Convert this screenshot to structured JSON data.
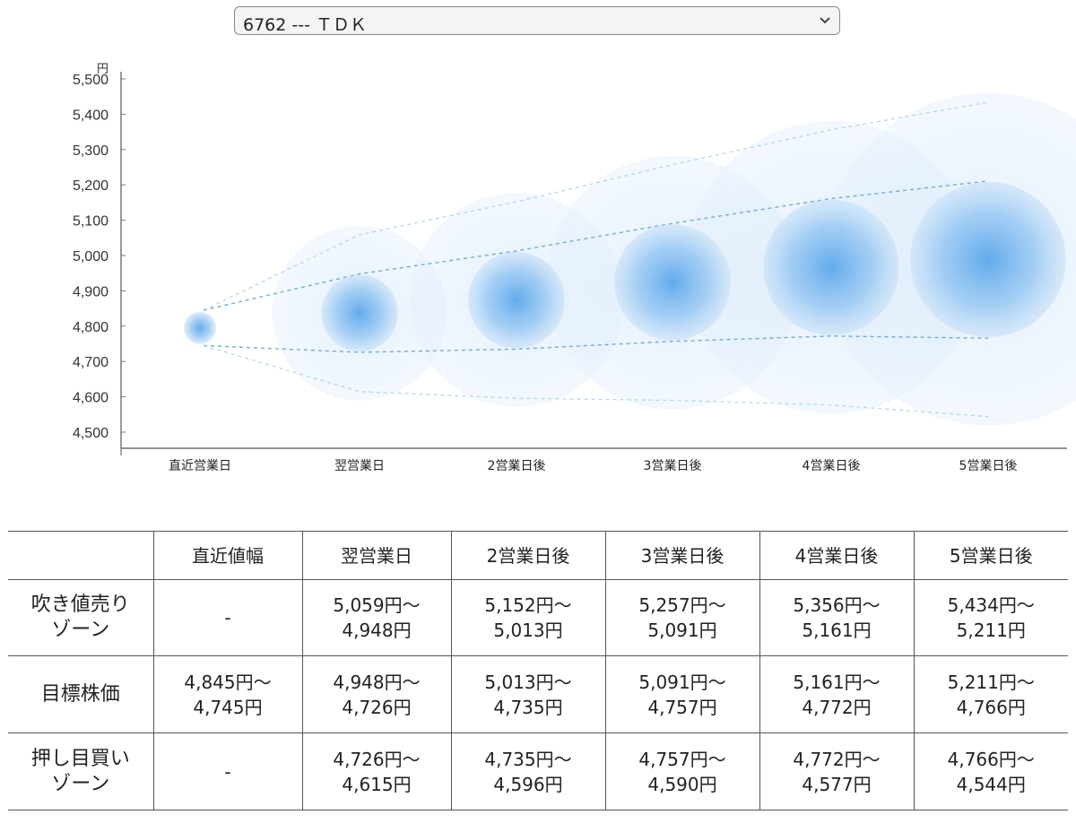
{
  "selector": {
    "value": "6762 --- ＴＤＫ"
  },
  "chart_data": {
    "type": "bubble-range",
    "y_unit_label": "円",
    "ylim": [
      4500,
      5500
    ],
    "y_ticks": [
      "4,500",
      "4,600",
      "4,700",
      "4,800",
      "4,900",
      "5,000",
      "5,100",
      "5,200",
      "5,300",
      "5,400",
      "5,500"
    ],
    "y_tick_values": [
      4500,
      4600,
      4700,
      4800,
      4900,
      5000,
      5100,
      5200,
      5300,
      5400,
      5500
    ],
    "categories": [
      "直近営業日",
      "翌営業日",
      "2営業日後",
      "3営業日後",
      "4営業日後",
      "5営業日後"
    ],
    "series": [
      {
        "values": [
          4845,
          5059,
          5152,
          5257,
          5356,
          5434
        ]
      },
      {
        "values": [
          4845,
          4948,
          5013,
          5091,
          5161,
          5211
        ]
      },
      {
        "values": [
          4745,
          4726,
          4735,
          4757,
          4772,
          4766
        ]
      },
      {
        "values": [
          4745,
          4615,
          4596,
          4590,
          4577,
          4544
        ]
      }
    ],
    "colors": {
      "bubble": "#5aa7ec",
      "dash": "#6aaee0"
    }
  },
  "table": {
    "headers": [
      "",
      "直近値幅",
      "翌営業日",
      "2営業日後",
      "3営業日後",
      "4営業日後",
      "5営業日後"
    ],
    "rows": [
      {
        "label": [
          "吹き値売り",
          "ゾーン"
        ],
        "cells": [
          [
            "-"
          ],
          [
            "5,059円〜",
            "4,948円"
          ],
          [
            "5,152円〜",
            "5,013円"
          ],
          [
            "5,257円〜",
            "5,091円"
          ],
          [
            "5,356円〜",
            "5,161円"
          ],
          [
            "5,434円〜",
            "5,211円"
          ]
        ]
      },
      {
        "label": [
          "目標株価"
        ],
        "cells": [
          [
            "4,845円〜",
            "4,745円"
          ],
          [
            "4,948円〜",
            "4,726円"
          ],
          [
            "5,013円〜",
            "4,735円"
          ],
          [
            "5,091円〜",
            "4,757円"
          ],
          [
            "5,161円〜",
            "4,772円"
          ],
          [
            "5,211円〜",
            "4,766円"
          ]
        ]
      },
      {
        "label": [
          "押し目買い",
          "ゾーン"
        ],
        "cells": [
          [
            "-"
          ],
          [
            "4,726円〜",
            "4,615円"
          ],
          [
            "4,735円〜",
            "4,596円"
          ],
          [
            "4,757円〜",
            "4,590円"
          ],
          [
            "4,772円〜",
            "4,577円"
          ],
          [
            "4,766円〜",
            "4,544円"
          ]
        ]
      }
    ]
  }
}
